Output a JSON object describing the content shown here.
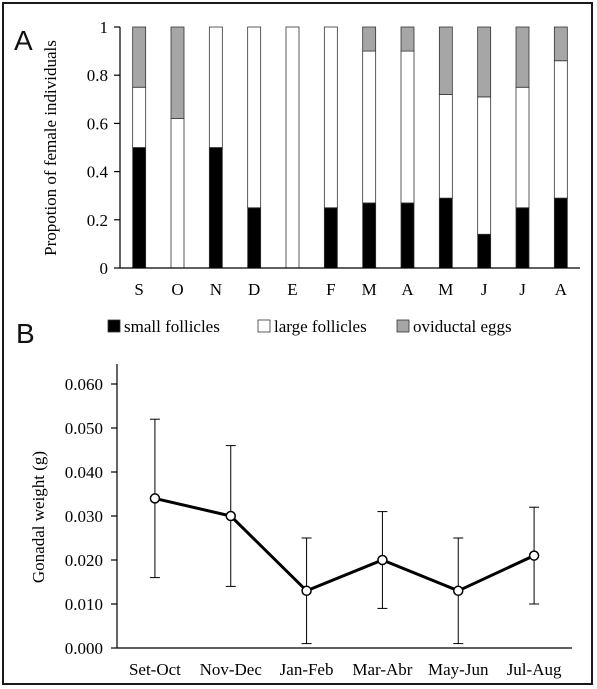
{
  "chart_data": [
    {
      "panel": "A",
      "type": "bar",
      "stacked": true,
      "ylabel": "Propotion of female individuals",
      "xlabel": "",
      "ylim": [
        0,
        1
      ],
      "yticks": [
        "0",
        "0.2",
        "0.4",
        "0.6",
        "0.8",
        "1"
      ],
      "categories": [
        "S",
        "O",
        "N",
        "D",
        "E",
        "F",
        "M",
        "A",
        "M",
        "J",
        "J",
        "A"
      ],
      "series": [
        {
          "name": "small follicles",
          "color": "#000000",
          "values": [
            0.5,
            0,
            0.5,
            0.25,
            0,
            0.25,
            0.27,
            0.27,
            0.29,
            0.14,
            0.25,
            0.29
          ]
        },
        {
          "name": "large follicles",
          "color": "#ffffff",
          "values": [
            0.25,
            0.62,
            0.5,
            0.75,
            1.0,
            0.75,
            0.63,
            0.63,
            0.43,
            0.57,
            0.5,
            0.57
          ]
        },
        {
          "name": "oviductal eggs",
          "color": "#a6a6a6",
          "values": [
            0.25,
            0.38,
            0,
            0,
            0,
            0,
            0.1,
            0.1,
            0.28,
            0.29,
            0.25,
            0.14
          ]
        }
      ],
      "legend_position": "bottom"
    },
    {
      "panel": "B",
      "type": "line",
      "ylabel": "Gonadal weight (g)",
      "xlabel": "",
      "ylim": [
        0,
        0.06
      ],
      "yticks": [
        "0.000",
        "0.010",
        "0.020",
        "0.030",
        "0.040",
        "0.050",
        "0.060"
      ],
      "categories": [
        "Set-Oct",
        "Nov-Dec",
        "Jan-Feb",
        "Mar-Abr",
        "May-Jun",
        "Jul-Aug"
      ],
      "series": [
        {
          "values": [
            0.034,
            0.03,
            0.013,
            0.02,
            0.013,
            0.021
          ],
          "error_low": [
            0.016,
            0.014,
            0.001,
            0.009,
            0.001,
            0.01
          ],
          "error_high": [
            0.052,
            0.046,
            0.025,
            0.031,
            0.025,
            0.032
          ]
        }
      ]
    }
  ]
}
